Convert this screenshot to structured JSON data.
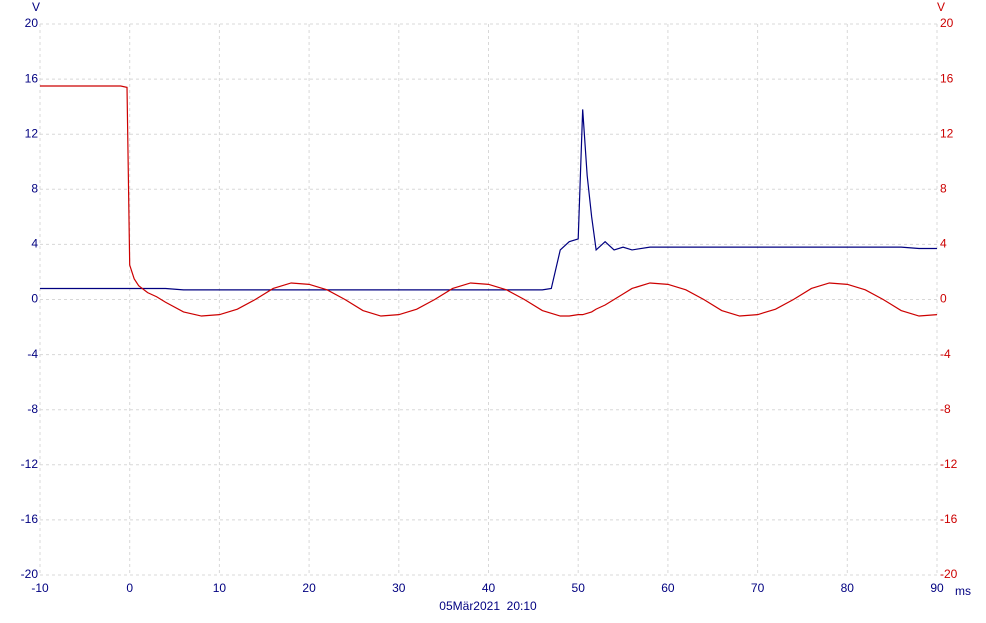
{
  "chart_data": {
    "type": "line",
    "y_label": "V",
    "y2_label": "V",
    "x_label": "ms",
    "footer": "05Mär2021  20:10",
    "grid": true,
    "xlim": [
      -10,
      90
    ],
    "xticks": [
      -10,
      0,
      10,
      20,
      30,
      40,
      50,
      60,
      70,
      80,
      90
    ],
    "ylim": [
      -20,
      20
    ],
    "yticks": [
      -20,
      -16,
      -12,
      -8,
      -4,
      0,
      4,
      8,
      12,
      16,
      20
    ],
    "y2lim": [
      -20,
      20
    ],
    "y2ticks": [
      -20,
      -16,
      -12,
      -8,
      -4,
      0,
      4,
      8,
      12,
      16,
      20
    ],
    "x": [
      -10,
      -1,
      -0.3,
      0,
      0.5,
      1,
      2,
      3,
      4,
      6,
      8,
      10,
      12,
      14,
      16,
      18,
      20,
      22,
      24,
      26,
      28,
      30,
      32,
      34,
      36,
      38,
      40,
      42,
      44,
      46,
      47,
      48,
      49,
      50,
      50.5,
      51,
      51.5,
      52,
      53,
      54,
      55,
      56,
      58,
      60,
      62,
      64,
      66,
      68,
      70,
      72,
      74,
      76,
      78,
      80,
      82,
      84,
      86,
      88,
      90
    ],
    "series": [
      {
        "color": "#000080",
        "axis": "y",
        "values": [
          0.8,
          0.8,
          0.8,
          0.8,
          0.8,
          0.8,
          0.8,
          0.8,
          0.8,
          0.7,
          0.7,
          0.7,
          0.7,
          0.7,
          0.7,
          0.7,
          0.7,
          0.7,
          0.7,
          0.7,
          0.7,
          0.7,
          0.7,
          0.7,
          0.7,
          0.7,
          0.7,
          0.7,
          0.7,
          0.7,
          0.8,
          3.6,
          4.2,
          4.4,
          13.8,
          9.0,
          6.0,
          3.6,
          4.2,
          3.6,
          3.8,
          3.6,
          3.8,
          3.8,
          3.8,
          3.8,
          3.8,
          3.8,
          3.8,
          3.8,
          3.8,
          3.8,
          3.8,
          3.8,
          3.8,
          3.8,
          3.8,
          3.7,
          3.7
        ]
      },
      {
        "color": "#cc0000",
        "axis": "y2",
        "values": [
          15.5,
          15.5,
          15.4,
          2.5,
          1.5,
          1.0,
          0.5,
          0.2,
          -0.2,
          -0.9,
          -1.2,
          -1.1,
          -0.7,
          0,
          0.8,
          1.2,
          1.1,
          0.7,
          0,
          -0.8,
          -1.2,
          -1.1,
          -0.7,
          0,
          0.8,
          1.2,
          1.1,
          0.7,
          0,
          -0.8,
          -1.0,
          -1.2,
          -1.2,
          -1.1,
          -1.1,
          -1.0,
          -0.9,
          -0.7,
          -0.4,
          0,
          0.4,
          0.8,
          1.2,
          1.1,
          0.7,
          0,
          -0.8,
          -1.2,
          -1.1,
          -0.7,
          0,
          0.8,
          1.2,
          1.1,
          0.7,
          0,
          -0.8,
          -1.2,
          -1.1
        ]
      }
    ]
  }
}
